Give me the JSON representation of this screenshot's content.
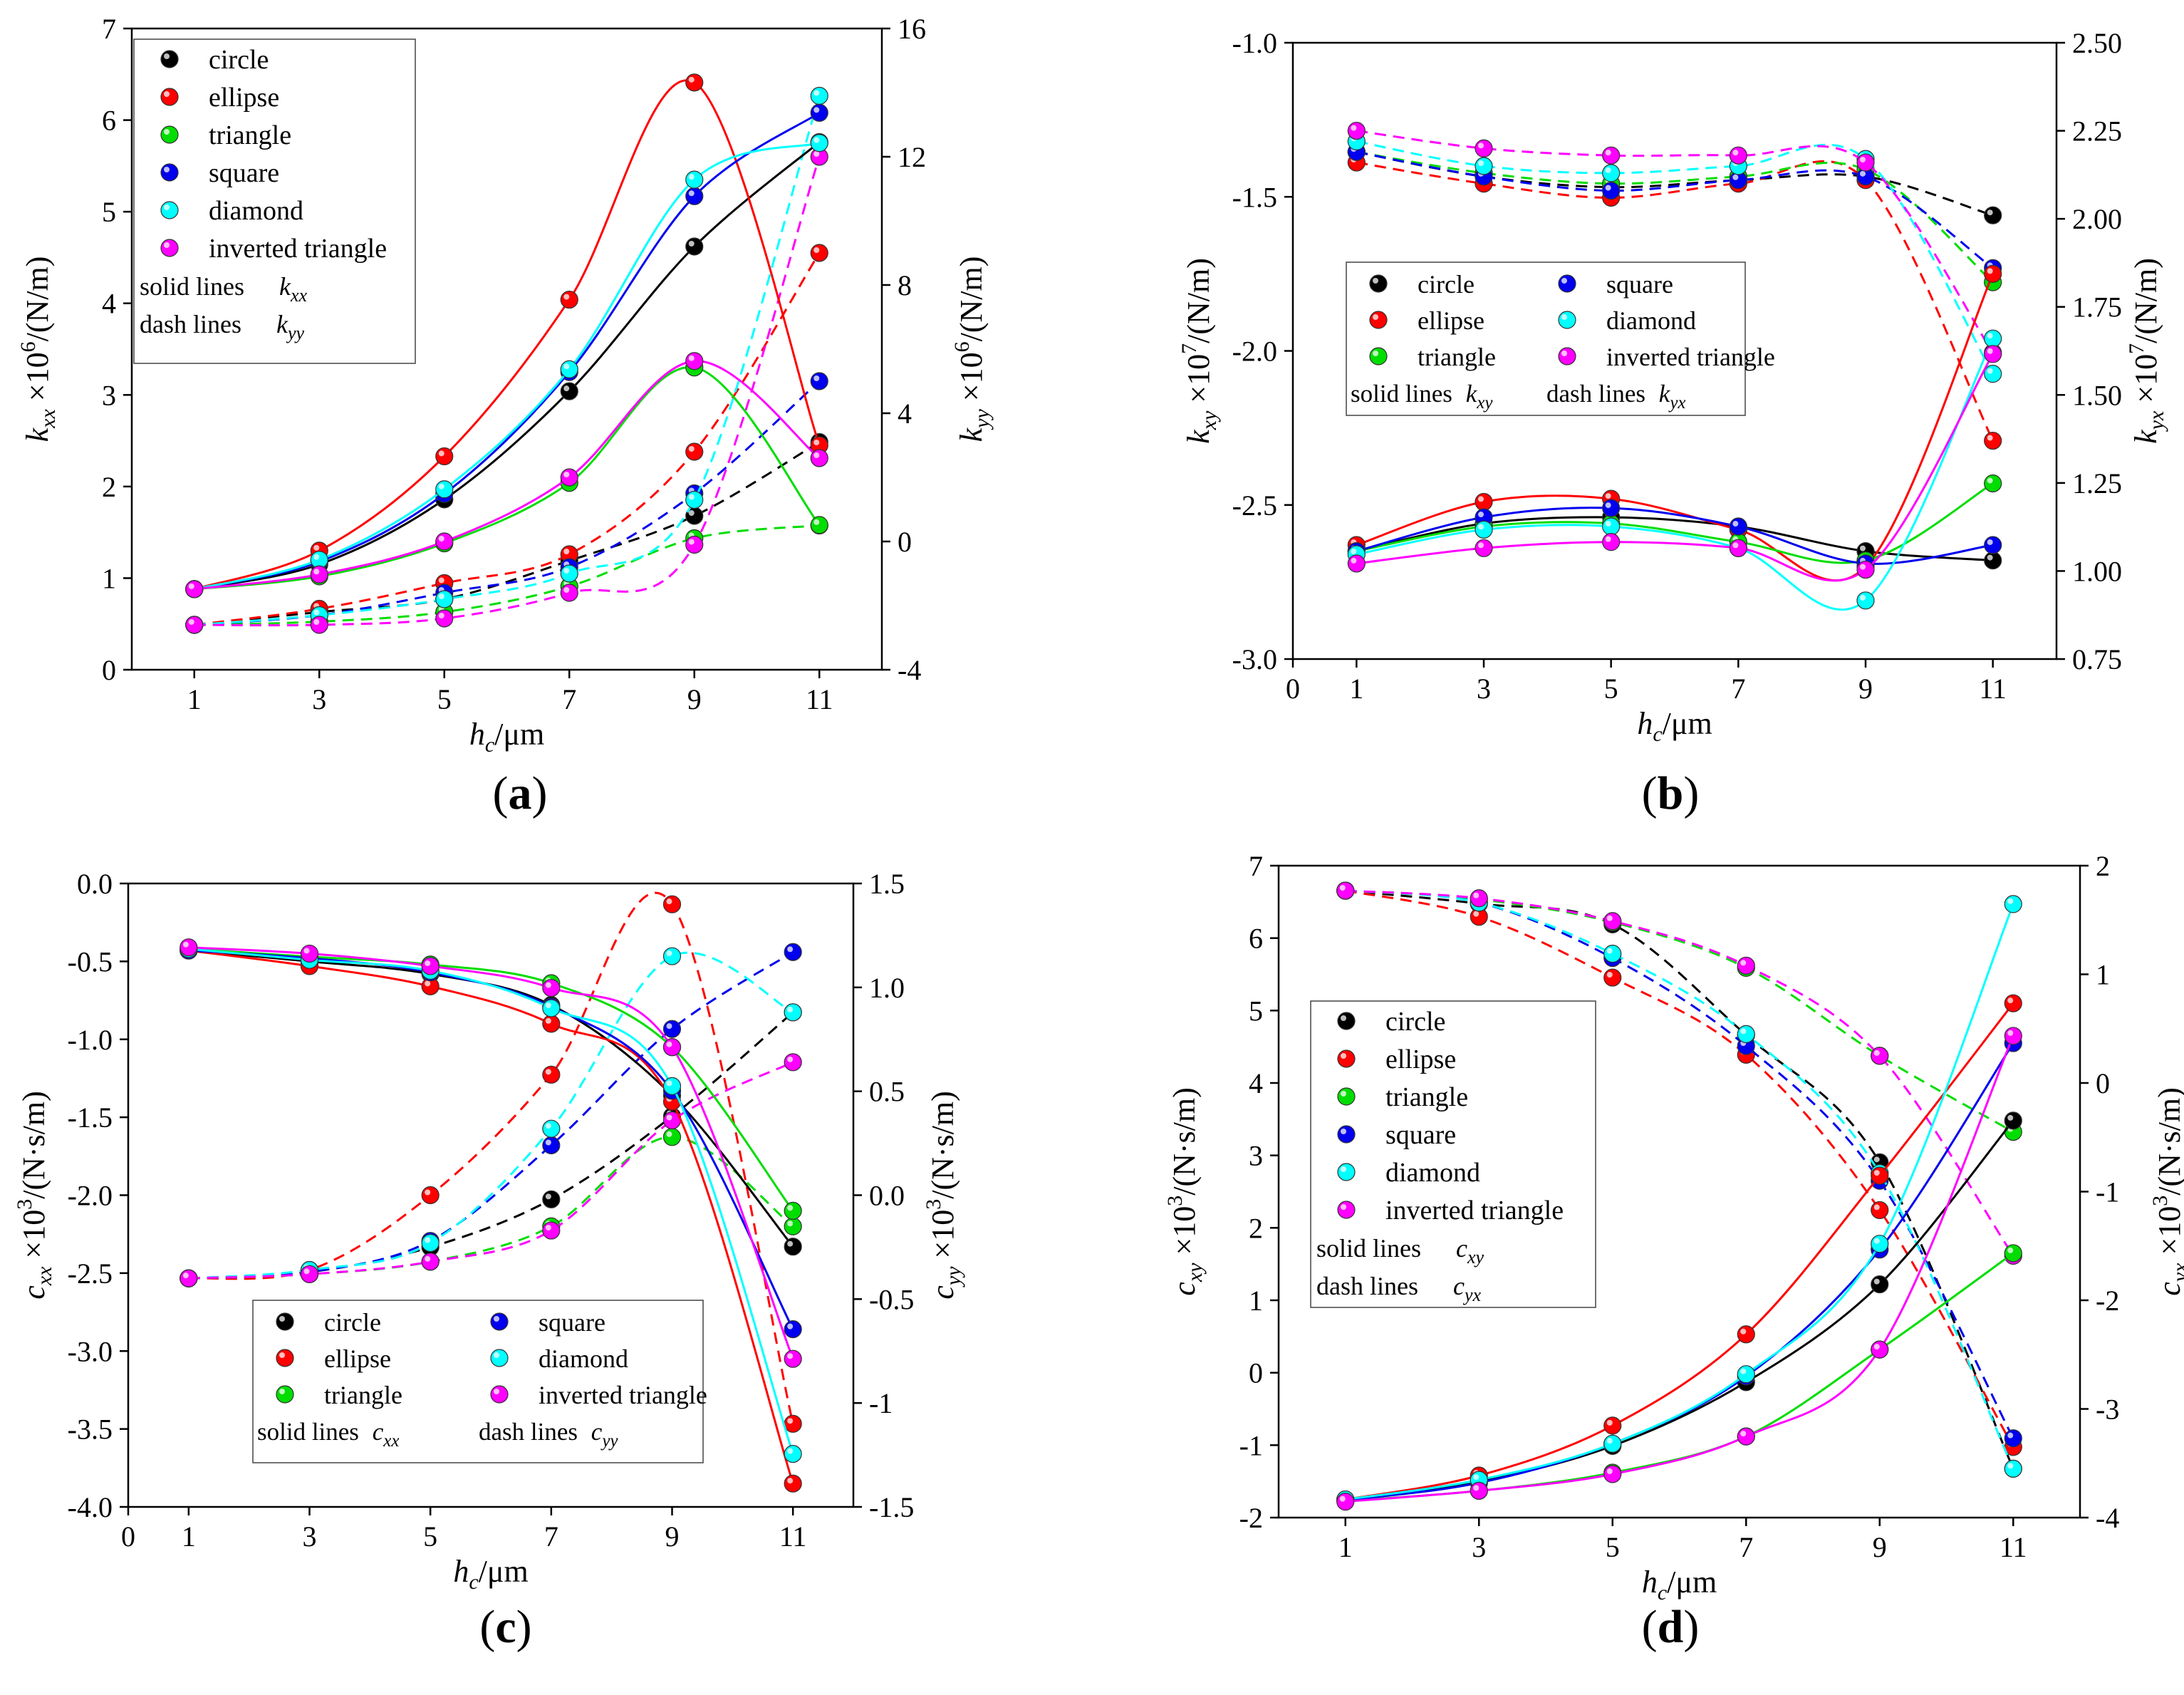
{
  "figure": {
    "panel_captions": [
      "(a)",
      "(b)",
      "(c)",
      "(d)"
    ],
    "series_names": [
      "circle",
      "ellipse",
      "triangle",
      "square",
      "diamond",
      "inverted triangle"
    ],
    "colors": {
      "circle": "#000000",
      "ellipse": "#ff0000",
      "triangle": "#00dd00",
      "square": "#0000ee",
      "diamond": "#00ffff",
      "inverted triangle": "#ff00ff"
    }
  },
  "chart_data": [
    {
      "type": "line",
      "caption": "(a)",
      "xlabel": "h_c/μm",
      "ylabel_left": "k_xx ×10^6/(N/m)",
      "ylabel_right": "k_yy ×10^6/(N/m)",
      "x": [
        1,
        3,
        5,
        7,
        9,
        11
      ],
      "xlim": [
        0,
        12
      ],
      "xticks": [
        "1",
        "3",
        "5",
        "7",
        "9",
        "11"
      ],
      "ylim_left": [
        0,
        7
      ],
      "yticks_left": [
        "0",
        "1",
        "2",
        "3",
        "4",
        "5",
        "6",
        "7"
      ],
      "ylim_right": [
        -4,
        16
      ],
      "yticks_right": [
        "-4",
        "0",
        "4",
        "8",
        "12",
        "16"
      ],
      "legend_position": "top-left",
      "legend_columns": 1,
      "legend_notes": [
        {
          "text": "solid lines",
          "symbol": "k",
          "sub": "xx"
        },
        {
          "text": "dash lines",
          "symbol": "k",
          "sub": "yy"
        }
      ],
      "solid_series": [
        {
          "name": "circle",
          "values": [
            0.88,
            1.15,
            1.86,
            3.04,
            4.62,
            5.76
          ]
        },
        {
          "name": "ellipse",
          "values": [
            0.88,
            1.3,
            2.33,
            4.04,
            6.41,
            2.45
          ]
        },
        {
          "name": "triangle",
          "values": [
            0.88,
            1.02,
            1.38,
            2.04,
            3.3,
            1.58
          ]
        },
        {
          "name": "square",
          "values": [
            0.88,
            1.18,
            1.92,
            3.25,
            5.17,
            6.08
          ]
        },
        {
          "name": "diamond",
          "values": [
            0.88,
            1.2,
            1.97,
            3.28,
            5.35,
            5.75
          ]
        },
        {
          "name": "inverted triangle",
          "values": [
            0.88,
            1.04,
            1.4,
            2.1,
            3.37,
            2.31
          ]
        }
      ],
      "dash_series": [
        {
          "name": "circle",
          "values": [
            -2.6,
            -2.2,
            -1.8,
            -0.6,
            0.8,
            3.1
          ]
        },
        {
          "name": "ellipse",
          "values": [
            -2.6,
            -2.1,
            -1.3,
            -0.4,
            2.8,
            9.0
          ]
        },
        {
          "name": "triangle",
          "values": [
            -2.6,
            -2.5,
            -2.2,
            -1.4,
            0.1,
            0.5
          ]
        },
        {
          "name": "square",
          "values": [
            -2.6,
            -2.3,
            -1.6,
            -0.8,
            1.5,
            5.0
          ]
        },
        {
          "name": "diamond",
          "values": [
            -2.6,
            -2.3,
            -1.8,
            -1.0,
            1.3,
            13.9
          ]
        },
        {
          "name": "inverted triangle",
          "values": [
            -2.6,
            -2.6,
            -2.4,
            -1.6,
            -0.1,
            12.0
          ]
        }
      ]
    },
    {
      "type": "line",
      "caption": "(b)",
      "xlabel": "h_c/μm",
      "ylabel_left": "k_xy ×10^7/(N/m)",
      "ylabel_right": "k_yx ×10^7/(N/m)",
      "x": [
        1,
        3,
        5,
        7,
        9,
        11
      ],
      "xlim": [
        0,
        12
      ],
      "xticks": [
        "0",
        "1",
        "3",
        "5",
        "7",
        "9",
        "11"
      ],
      "ylim_left": [
        -3.0,
        -1.0
      ],
      "yticks_left": [
        "-3.0",
        "-2.5",
        "-2.0",
        "-1.5",
        "-1.0"
      ],
      "ylim_right": [
        0.75,
        2.5
      ],
      "yticks_right": [
        "0.75",
        "1.00",
        "1.25",
        "1.50",
        "1.75",
        "2.00",
        "2.25",
        "2.50"
      ],
      "legend_position": "middle-left",
      "legend_columns": 2,
      "legend_notes": [
        {
          "text": "solid lines",
          "symbol": "k",
          "sub": "xy"
        },
        {
          "text": "dash lines",
          "symbol": "k",
          "sub": "yx"
        }
      ],
      "solid_series": [
        {
          "name": "circle",
          "values": [
            -2.65,
            -2.56,
            -2.54,
            -2.57,
            -2.65,
            -2.68
          ]
        },
        {
          "name": "ellipse",
          "values": [
            -2.63,
            -2.49,
            -2.48,
            -2.58,
            -2.7,
            -1.75
          ]
        },
        {
          "name": "triangle",
          "values": [
            -2.65,
            -2.57,
            -2.56,
            -2.62,
            -2.68,
            -2.43
          ]
        },
        {
          "name": "square",
          "values": [
            -2.65,
            -2.54,
            -2.51,
            -2.57,
            -2.69,
            -2.63
          ]
        },
        {
          "name": "diamond",
          "values": [
            -2.66,
            -2.58,
            -2.57,
            -2.64,
            -2.81,
            -1.96
          ]
        },
        {
          "name": "inverted triangle",
          "values": [
            -2.69,
            -2.64,
            -2.62,
            -2.64,
            -2.71,
            -2.01
          ]
        }
      ],
      "dash_series": [
        {
          "name": "circle",
          "values": [
            2.19,
            2.12,
            2.09,
            2.11,
            2.12,
            2.01
          ]
        },
        {
          "name": "ellipse",
          "values": [
            2.16,
            2.1,
            2.06,
            2.1,
            2.11,
            1.37
          ]
        },
        {
          "name": "triangle",
          "values": [
            2.19,
            2.13,
            2.1,
            2.12,
            2.14,
            1.82
          ]
        },
        {
          "name": "square",
          "values": [
            2.19,
            2.12,
            2.08,
            2.11,
            2.12,
            1.86
          ]
        },
        {
          "name": "diamond",
          "values": [
            2.22,
            2.15,
            2.13,
            2.15,
            2.17,
            1.56
          ]
        },
        {
          "name": "inverted triangle",
          "values": [
            2.25,
            2.2,
            2.18,
            2.18,
            2.16,
            1.62
          ]
        }
      ]
    },
    {
      "type": "line",
      "caption": "(c)",
      "xlabel": "h_c/μm",
      "ylabel_left": "c_xx ×10^3/(N·s/m)",
      "ylabel_right": "c_yy ×10^3/(N·s/m)",
      "x": [
        1,
        3,
        5,
        7,
        9,
        11
      ],
      "xlim": [
        0,
        12
      ],
      "xticks": [
        "0",
        "1",
        "3",
        "5",
        "7",
        "9",
        "11"
      ],
      "ylim_left": [
        -4.0,
        0.0
      ],
      "yticks_left": [
        "-4.0",
        "-3.5",
        "-3.0",
        "-2.5",
        "-2.0",
        "-1.5",
        "-1.0",
        "-0.5",
        "0.0"
      ],
      "ylim_right": [
        -1.5,
        1.5
      ],
      "yticks_right": [
        "-1.5",
        "-1",
        "-0.5",
        "0.0",
        "0.5",
        "1.0",
        "1.5"
      ],
      "legend_position": "bottom-center",
      "legend_columns": 2,
      "legend_notes": [
        {
          "text": "solid lines",
          "symbol": "c",
          "sub": "xx"
        },
        {
          "text": "dash lines",
          "symbol": "c",
          "sub": "yy"
        }
      ],
      "solid_series": [
        {
          "name": "circle",
          "values": [
            -0.43,
            -0.5,
            -0.58,
            -0.78,
            -1.36,
            -2.33
          ]
        },
        {
          "name": "ellipse",
          "values": [
            -0.43,
            -0.53,
            -0.66,
            -0.9,
            -1.4,
            -3.85
          ]
        },
        {
          "name": "triangle",
          "values": [
            -0.42,
            -0.47,
            -0.52,
            -0.64,
            -1.05,
            -2.1
          ]
        },
        {
          "name": "square",
          "values": [
            -0.43,
            -0.48,
            -0.57,
            -0.79,
            -1.33,
            -2.86
          ]
        },
        {
          "name": "diamond",
          "values": [
            -0.42,
            -0.49,
            -0.56,
            -0.8,
            -1.3,
            -3.66
          ]
        },
        {
          "name": "inverted triangle",
          "values": [
            -0.41,
            -0.45,
            -0.53,
            -0.67,
            -1.05,
            -3.05
          ]
        }
      ],
      "dash_series": [
        {
          "name": "circle",
          "values": [
            -0.4,
            -0.37,
            -0.25,
            -0.02,
            0.38,
            0.88
          ]
        },
        {
          "name": "ellipse",
          "values": [
            -0.4,
            -0.36,
            0.0,
            0.58,
            1.4,
            -1.1
          ]
        },
        {
          "name": "triangle",
          "values": [
            -0.4,
            -0.38,
            -0.32,
            -0.15,
            0.28,
            -0.15
          ]
        },
        {
          "name": "square",
          "values": [
            -0.4,
            -0.37,
            -0.22,
            0.24,
            0.8,
            1.17
          ]
        },
        {
          "name": "diamond",
          "values": [
            -0.4,
            -0.36,
            -0.23,
            0.32,
            1.15,
            0.88
          ]
        },
        {
          "name": "inverted triangle",
          "values": [
            -0.4,
            -0.38,
            -0.32,
            -0.17,
            0.36,
            0.64
          ]
        }
      ]
    },
    {
      "type": "line",
      "caption": "(d)",
      "xlabel": "h_c/μm",
      "ylabel_left": "c_xy ×10^3/(N·s/m)",
      "ylabel_right": "c_yx ×10^3/(N·s/m)",
      "x": [
        1,
        3,
        5,
        7,
        9,
        11
      ],
      "xlim": [
        0,
        12
      ],
      "xticks": [
        "1",
        "3",
        "5",
        "7",
        "9",
        "11"
      ],
      "ylim_left": [
        -2,
        7
      ],
      "yticks_left": [
        "-2",
        "-1",
        "0",
        "1",
        "2",
        "3",
        "4",
        "5",
        "6",
        "7"
      ],
      "ylim_right": [
        -4,
        2
      ],
      "yticks_right": [
        "-4",
        "-3",
        "-2",
        "-1",
        "0",
        "1",
        "2"
      ],
      "legend_position": "middle-left",
      "legend_columns": 1,
      "legend_notes": [
        {
          "text": "solid lines",
          "symbol": "c",
          "sub": "xy"
        },
        {
          "text": "dash lines",
          "symbol": "c",
          "sub": "yx"
        }
      ],
      "solid_series": [
        {
          "name": "circle",
          "values": [
            -1.75,
            -1.5,
            -1.01,
            -0.13,
            1.22,
            3.48
          ]
        },
        {
          "name": "ellipse",
          "values": [
            -1.75,
            -1.42,
            -0.73,
            0.53,
            2.72,
            5.1
          ]
        },
        {
          "name": "triangle",
          "values": [
            -1.77,
            -1.63,
            -1.38,
            -0.88,
            0.32,
            1.65
          ]
        },
        {
          "name": "square",
          "values": [
            -1.76,
            -1.52,
            -0.98,
            -0.05,
            1.7,
            4.55
          ]
        },
        {
          "name": "diamond",
          "values": [
            -1.75,
            -1.48,
            -0.98,
            -0.02,
            1.78,
            6.47
          ]
        },
        {
          "name": "inverted triangle",
          "values": [
            -1.78,
            -1.63,
            -1.4,
            -0.88,
            0.32,
            4.65
          ]
        }
      ],
      "dash_series": [
        {
          "name": "circle",
          "values": [
            1.77,
            1.65,
            1.46,
            0.44,
            -0.73,
            -3.55
          ]
        },
        {
          "name": "ellipse",
          "values": [
            1.77,
            1.53,
            0.97,
            0.26,
            -1.17,
            -3.35
          ]
        },
        {
          "name": "triangle",
          "values": [
            1.77,
            1.69,
            1.48,
            1.06,
            0.25,
            -0.45
          ]
        },
        {
          "name": "square",
          "values": [
            1.77,
            1.66,
            1.15,
            0.34,
            -0.9,
            -3.27
          ]
        },
        {
          "name": "diamond",
          "values": [
            1.77,
            1.66,
            1.19,
            0.45,
            -0.83,
            -3.55
          ]
        },
        {
          "name": "inverted triangle",
          "values": [
            1.77,
            1.7,
            1.49,
            1.08,
            0.25,
            -1.59
          ]
        }
      ]
    }
  ]
}
